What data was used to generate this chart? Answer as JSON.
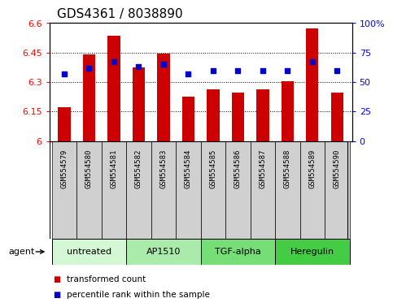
{
  "title": "GDS4361 / 8038890",
  "samples": [
    "GSM554579",
    "GSM554580",
    "GSM554581",
    "GSM554582",
    "GSM554583",
    "GSM554584",
    "GSM554585",
    "GSM554586",
    "GSM554587",
    "GSM554588",
    "GSM554589",
    "GSM554590"
  ],
  "red_values": [
    6.17,
    6.44,
    6.535,
    6.375,
    6.445,
    6.225,
    6.265,
    6.245,
    6.265,
    6.305,
    6.575,
    6.245
  ],
  "blue_values_pct": [
    57,
    62,
    67,
    63,
    65,
    57,
    60,
    60,
    60,
    60,
    67,
    60
  ],
  "ylim_left": [
    6.0,
    6.6
  ],
  "yticks_left": [
    6.0,
    6.15,
    6.3,
    6.45,
    6.6
  ],
  "ytick_labels_left": [
    "6",
    "6.15",
    "6.3",
    "6.45",
    "6.6"
  ],
  "ylim_right": [
    0,
    100
  ],
  "yticks_right": [
    0,
    25,
    50,
    75,
    100
  ],
  "ytick_labels_right": [
    "0",
    "25",
    "50",
    "75",
    "100%"
  ],
  "groups": [
    {
      "label": "untreated",
      "start": 0,
      "end": 3,
      "color": "#d4f7d4"
    },
    {
      "label": "AP1510",
      "start": 3,
      "end": 6,
      "color": "#aaeaaa"
    },
    {
      "label": "TGF-alpha",
      "start": 6,
      "end": 9,
      "color": "#77dd77"
    },
    {
      "label": "Heregulin",
      "start": 9,
      "end": 12,
      "color": "#44cc44"
    }
  ],
  "agent_label": "agent",
  "red_color": "#cc0000",
  "blue_color": "#0000cc",
  "bar_width": 0.5,
  "grid_color": "#000000",
  "legend_items": [
    {
      "label": "transformed count",
      "color": "#cc0000"
    },
    {
      "label": "percentile rank within the sample",
      "color": "#0000cc"
    }
  ],
  "title_fontsize": 11,
  "tick_fontsize": 8,
  "label_fontsize": 8,
  "sample_box_color": "#d0d0d0"
}
